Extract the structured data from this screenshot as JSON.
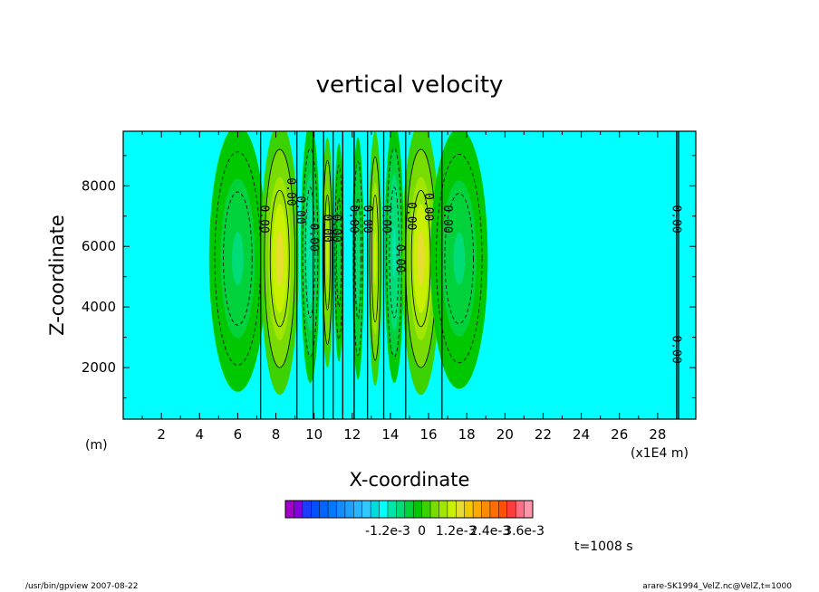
{
  "chart_data": {
    "type": "heatmap",
    "title": "vertical velocity",
    "xlabel": "X-coordinate",
    "ylabel": "Z-coordinate",
    "x_unit": "(m)",
    "x_scale_note": "(x1E4 m)",
    "xlim": [
      0,
      30
    ],
    "ylim": [
      300,
      9800
    ],
    "x_ticks": [
      2,
      4,
      6,
      8,
      10,
      12,
      14,
      16,
      18,
      20,
      22,
      24,
      26,
      28
    ],
    "x_tick_labels": [
      "2",
      "4",
      "6",
      "8",
      "10",
      "12",
      "14",
      "16",
      "18",
      "20",
      "22",
      "24",
      "26",
      "28"
    ],
    "y_ticks": [
      2000,
      4000,
      6000,
      8000
    ],
    "y_tick_labels": [
      "2000",
      "4000",
      "6000",
      "8000"
    ],
    "time_label": "t=1008 s",
    "background_value": 0,
    "cells": [
      {
        "x": 6.0,
        "width": 3.0,
        "z_center": 5600,
        "z_half": 4400,
        "value": -0.0007
      },
      {
        "x": 8.2,
        "width": 2.0,
        "z_center": 5600,
        "z_half": 4500,
        "value": 0.0012
      },
      {
        "x": 9.8,
        "width": 1.0,
        "z_center": 5800,
        "z_half": 4300,
        "value": -0.0012
      },
      {
        "x": 10.7,
        "width": 0.6,
        "z_center": 5800,
        "z_half": 3800,
        "value": 0.0009
      },
      {
        "x": 11.3,
        "width": 0.5,
        "z_center": 5800,
        "z_half": 3600,
        "value": -0.0004
      },
      {
        "x": 12.3,
        "width": 0.6,
        "z_center": 5600,
        "z_half": 4000,
        "value": -0.0008
      },
      {
        "x": 13.2,
        "width": 0.7,
        "z_center": 5600,
        "z_half": 4200,
        "value": 0.001
      },
      {
        "x": 14.2,
        "width": 1.0,
        "z_center": 5800,
        "z_half": 4300,
        "value": -0.0011
      },
      {
        "x": 15.6,
        "width": 2.0,
        "z_center": 5600,
        "z_half": 4500,
        "value": 0.0013
      },
      {
        "x": 17.6,
        "width": 3.0,
        "z_center": 5600,
        "z_half": 4300,
        "value": -0.0007
      }
    ],
    "zero_lines_x": [
      7.2,
      9.1,
      9.95,
      10.5,
      11.0,
      11.5,
      12.1,
      12.8,
      13.65,
      14.8,
      16.7,
      29.0,
      29.1
    ],
    "contour_labels": [
      {
        "x": 7.2,
        "z": 6900,
        "text": "0.00"
      },
      {
        "x": 8.6,
        "z": 7800,
        "text": "0.00"
      },
      {
        "x": 9.1,
        "z": 7200,
        "text": "0.00"
      },
      {
        "x": 9.8,
        "z": 6300,
        "text": "0.00"
      },
      {
        "x": 10.5,
        "z": 6600,
        "text": "0.00"
      },
      {
        "x": 11.0,
        "z": 6600,
        "text": "0.00"
      },
      {
        "x": 11.9,
        "z": 6900,
        "text": "0.00"
      },
      {
        "x": 12.6,
        "z": 6900,
        "text": "0.00"
      },
      {
        "x": 13.6,
        "z": 6900,
        "text": "0.00"
      },
      {
        "x": 14.3,
        "z": 5600,
        "text": "0.00"
      },
      {
        "x": 14.9,
        "z": 7000,
        "text": "0.00"
      },
      {
        "x": 15.8,
        "z": 7300,
        "text": "0.00"
      },
      {
        "x": 16.8,
        "z": 6900,
        "text": "0.00"
      },
      {
        "x": 28.8,
        "z": 6900,
        "text": "0.00"
      },
      {
        "x": 28.8,
        "z": 2600,
        "text": "0.00"
      }
    ],
    "colorbar": {
      "min": -0.0048,
      "step": 0.0003,
      "ticks": [
        -0.0012,
        0,
        0.0012,
        0.0024,
        0.0036
      ],
      "tick_labels": [
        "-1.2e-3",
        "0",
        "1.2e-3",
        "2.4e-3",
        "3.6e-3"
      ],
      "colors": [
        "#a000c8",
        "#8200dc",
        "#1e3cff",
        "#0050ff",
        "#0064ff",
        "#0078ff",
        "#148cff",
        "#1ea0ff",
        "#28b4ff",
        "#32c8ff",
        "#00dcdc",
        "#00ffff",
        "#00e6aa",
        "#00dc78",
        "#00d23c",
        "#00c800",
        "#3cd200",
        "#78dc00",
        "#a0e600",
        "#c8f000",
        "#e6dc32",
        "#f0c800",
        "#faaa00",
        "#ff8c00",
        "#ff6e00",
        "#ff5000",
        "#ff3c3c",
        "#ff6e82",
        "#ff96aa"
      ]
    }
  },
  "footer": {
    "left": "/usr/bin/gpview   2007-08-22",
    "right": "arare-SK1994_VelZ.nc@VelZ,t=1000"
  }
}
